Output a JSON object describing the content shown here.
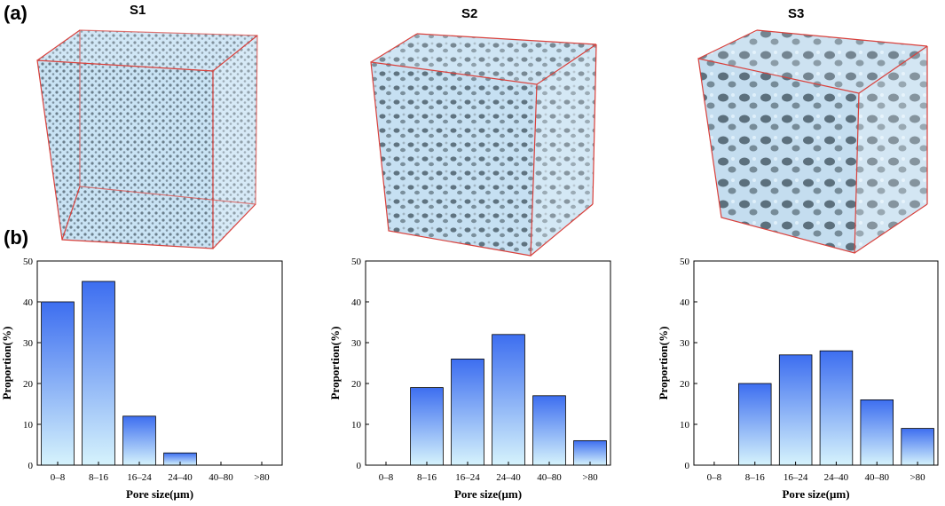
{
  "panels": {
    "a": "(a)",
    "b": "(b)"
  },
  "samples": [
    "S1",
    "S2",
    "S3"
  ],
  "colors": {
    "cube_edge": "#d9413c",
    "pore_light": "#c9e3f4",
    "pore_dark": "#5f7380",
    "bar_top": "#3d6ef0",
    "bar_bottom": "#d6f3fc"
  },
  "chart_data": [
    {
      "type": "bar",
      "title": "",
      "xlabel": "Pore size(μm)",
      "ylabel": "Proportion(%)",
      "categories": [
        "0–8",
        "8–16",
        "16–24",
        "24–40",
        "40–80",
        ">80"
      ],
      "values": [
        40,
        45,
        12,
        3,
        0,
        0
      ],
      "ylim": [
        0,
        50
      ],
      "yticks": [
        0,
        10,
        20,
        30,
        40,
        50
      ],
      "grid": false
    },
    {
      "type": "bar",
      "title": "",
      "xlabel": "Pore size(μm)",
      "ylabel": "Proportion(%)",
      "categories": [
        "0–8",
        "8–16",
        "16–24",
        "24–40",
        "40–80",
        ">80"
      ],
      "values": [
        0,
        19,
        26,
        32,
        17,
        6
      ],
      "ylim": [
        0,
        50
      ],
      "yticks": [
        0,
        10,
        20,
        30,
        40,
        50
      ],
      "grid": false
    },
    {
      "type": "bar",
      "title": "",
      "xlabel": "Pore size(μm)",
      "ylabel": "Proportion(%)",
      "categories": [
        "0–8",
        "8–16",
        "16–24",
        "24–40",
        "40–80",
        ">80"
      ],
      "values": [
        0,
        20,
        27,
        28,
        16,
        9
      ],
      "ylim": [
        0,
        50
      ],
      "yticks": [
        0,
        10,
        20,
        30,
        40,
        50
      ],
      "grid": false
    }
  ]
}
